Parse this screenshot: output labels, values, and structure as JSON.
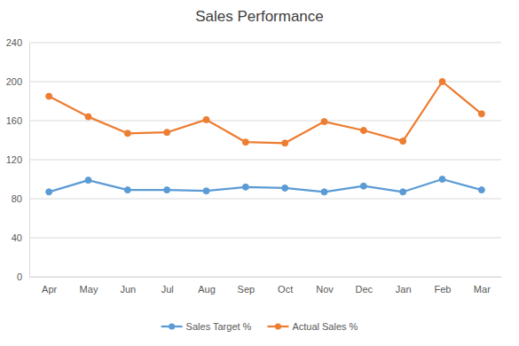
{
  "chart_data": {
    "type": "line",
    "title": "Sales Performance",
    "categories": [
      "Apr",
      "May",
      "Jun",
      "Jul",
      "Aug",
      "Sep",
      "Oct",
      "Nov",
      "Dec",
      "Jan",
      "Feb",
      "Mar"
    ],
    "series": [
      {
        "name": "Sales Target %",
        "color": "#5b9bd5",
        "marker": "circle",
        "values": [
          87,
          99,
          89,
          89,
          88,
          92,
          91,
          87,
          93,
          87,
          100,
          89
        ]
      },
      {
        "name": "Actual Sales %",
        "color": "#ed7d31",
        "marker": "circle",
        "values": [
          185,
          164,
          147,
          148,
          161,
          138,
          137,
          159,
          150,
          139,
          200,
          167
        ]
      }
    ],
    "ylim": [
      0,
      240
    ],
    "yticks": [
      0,
      40,
      80,
      120,
      160,
      200,
      240
    ],
    "grid": true,
    "legend": "bottom"
  }
}
